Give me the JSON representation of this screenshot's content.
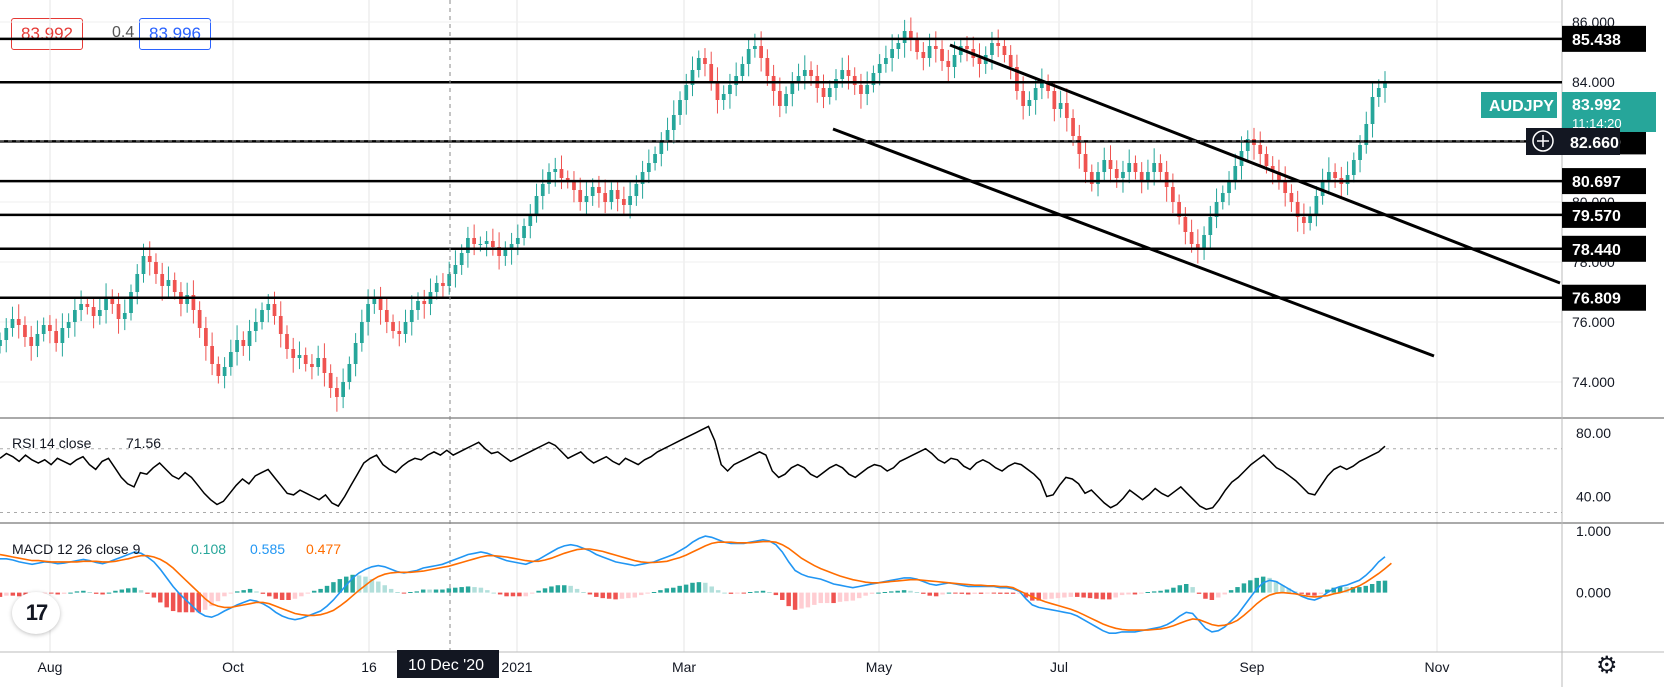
{
  "quote": {
    "bid": "83.992",
    "spread": "0.4",
    "ask": "83.996"
  },
  "symbol": "AUDJPY",
  "last_price": "83.992",
  "countdown": "11:14:20",
  "crosshair_price": "82.660",
  "crosshair_date": "10 Dec '20",
  "rsi_label": "RSI 14 close",
  "rsi_value": "71.56",
  "macd_label": "MACD 12 26 close 9",
  "macd_hist": "0.108",
  "macd_line": "0.585",
  "macd_signal": "0.477",
  "colors": {
    "up": "#26a69a",
    "down": "#ef5350",
    "macd": "#2196f3",
    "signal": "#ff6d00",
    "label_bg": "#000000",
    "symbol_bg": "#26a69a"
  },
  "icons": {
    "logo": "tradingview-logo-icon",
    "settings": "gear-icon",
    "crosshair": "plus-circle-icon"
  },
  "chart_data": {
    "type": "candlestick",
    "instrument": "AUDJPY",
    "x_ticks": [
      "Aug",
      "Oct",
      "16",
      "2021",
      "Mar",
      "May",
      "Jul",
      "Sep",
      "Nov"
    ],
    "price_axis": {
      "ticks": [
        "86.000",
        "84.000",
        "82.000",
        "80.000",
        "78.000",
        "76.000",
        "74.000"
      ],
      "ylim": [
        72.8,
        86.6
      ]
    },
    "horizontal_levels": [
      "85.438",
      "83.992",
      "82.020",
      "80.697",
      "79.570",
      "78.440",
      "76.809"
    ],
    "close_series": [
      75.4,
      75.8,
      76.1,
      75.9,
      75.5,
      75.2,
      75.6,
      75.9,
      75.7,
      75.3,
      75.8,
      76.0,
      76.4,
      76.6,
      76.5,
      76.2,
      76.4,
      76.8,
      76.6,
      76.1,
      76.3,
      77.0,
      77.6,
      78.2,
      78.0,
      77.6,
      77.2,
      77.4,
      77.0,
      76.6,
      76.9,
      76.4,
      75.8,
      75.2,
      74.6,
      74.2,
      74.5,
      75.0,
      75.4,
      75.2,
      75.7,
      76.0,
      76.4,
      76.6,
      76.2,
      75.6,
      75.1,
      74.8,
      74.9,
      74.6,
      74.5,
      74.8,
      74.3,
      73.8,
      73.5,
      74.0,
      74.6,
      75.3,
      76.0,
      76.6,
      76.8,
      76.4,
      76.0,
      75.7,
      75.6,
      76.0,
      76.4,
      76.7,
      76.6,
      77.0,
      77.3,
      77.2,
      77.6,
      77.9,
      78.3,
      78.8,
      78.6,
      78.6,
      78.7,
      78.5,
      78.2,
      78.4,
      78.6,
      78.8,
      79.2,
      79.6,
      80.2,
      80.6,
      81.0,
      81.1,
      80.8,
      80.7,
      80.4,
      80.0,
      80.2,
      80.5,
      80.3,
      80.0,
      80.4,
      80.1,
      79.9,
      80.2,
      80.6,
      81.0,
      81.3,
      81.6,
      82.0,
      82.4,
      82.9,
      83.4,
      83.9,
      84.4,
      84.8,
      84.6,
      84.0,
      83.4,
      83.6,
      83.9,
      84.2,
      84.6,
      85.1,
      85.2,
      84.8,
      84.2,
      83.7,
      83.2,
      83.6,
      84.0,
      84.2,
      84.4,
      84.2,
      83.8,
      83.5,
      83.8,
      84.1,
      84.4,
      84.2,
      83.9,
      83.6,
      83.9,
      84.3,
      84.6,
      84.8,
      85.1,
      85.3,
      85.7,
      85.4,
      85.0,
      84.8,
      85.2,
      85.1,
      84.7,
      84.5,
      84.9,
      85.2,
      85.1,
      84.8,
      84.6,
      84.9,
      85.3,
      85.2,
      84.9,
      84.5,
      83.7,
      83.2,
      83.4,
      83.8,
      84.0,
      83.7,
      83.1,
      83.3,
      82.8,
      82.2,
      81.6,
      81.0,
      80.6,
      81.0,
      81.4,
      81.1,
      80.8,
      81.0,
      81.3,
      81.0,
      80.7,
      81.0,
      81.3,
      81.0,
      80.5,
      80.0,
      79.5,
      79.0,
      78.6,
      78.4,
      78.9,
      79.5,
      80.0,
      80.3,
      80.7,
      81.2,
      81.7,
      82.1,
      81.9,
      81.6,
      81.2,
      81.0,
      80.7,
      80.3,
      80.0,
      79.5,
      79.3,
      79.6,
      80.2,
      80.7,
      81.0,
      80.8,
      80.6,
      80.9,
      81.4,
      81.9,
      82.6,
      83.5,
      83.8,
      83.992
    ],
    "rsi": {
      "ticks": [
        "80.00",
        "40.00"
      ],
      "ylim": [
        24,
        88
      ],
      "bands": [
        70,
        30
      ],
      "values": [
        64,
        67,
        65,
        62,
        66,
        63,
        61,
        63,
        60,
        64,
        62,
        60,
        63,
        65,
        60,
        57,
        62,
        64,
        58,
        52,
        48,
        46,
        55,
        54,
        58,
        61,
        57,
        53,
        51,
        55,
        52,
        47,
        42,
        38,
        35,
        37,
        42,
        47,
        51,
        48,
        53,
        55,
        57,
        52,
        47,
        42,
        41,
        44,
        42,
        40,
        38,
        41,
        36,
        34,
        40,
        47,
        54,
        61,
        64,
        66,
        60,
        57,
        55,
        59,
        62,
        64,
        63,
        66,
        68,
        66,
        69,
        66,
        68,
        70,
        72,
        74,
        70,
        67,
        68,
        65,
        62,
        64,
        66,
        68,
        70,
        72,
        74,
        72,
        68,
        64,
        66,
        68,
        64,
        61,
        63,
        65,
        62,
        60,
        64,
        62,
        60,
        63,
        65,
        68,
        70,
        72,
        74,
        76,
        78,
        80,
        82,
        84,
        75,
        60,
        56,
        60,
        62,
        64,
        66,
        68,
        66,
        56,
        52,
        54,
        58,
        60,
        58,
        54,
        52,
        55,
        58,
        60,
        58,
        54,
        52,
        55,
        58,
        60,
        59,
        56,
        58,
        62,
        64,
        66,
        68,
        70,
        67,
        63,
        61,
        64,
        63,
        59,
        57,
        61,
        63,
        61,
        58,
        56,
        59,
        61,
        60,
        57,
        54,
        50,
        40,
        41,
        47,
        52,
        51,
        48,
        42,
        44,
        40,
        36,
        33,
        35,
        39,
        44,
        41,
        38,
        41,
        45,
        42,
        40,
        43,
        46,
        42,
        38,
        34,
        32,
        33,
        38,
        44,
        49,
        52,
        56,
        60,
        63,
        66,
        62,
        58,
        56,
        53,
        50,
        46,
        42,
        41,
        47,
        53,
        57,
        59,
        57,
        59,
        62,
        64,
        66,
        68,
        71.56
      ]
    },
    "macd": {
      "ticks": [
        "1.000",
        "0.000"
      ],
      "ylim": [
        -0.95,
        1.1
      ],
      "line": [
        0.55,
        0.55,
        0.53,
        0.5,
        0.48,
        0.46,
        0.48,
        0.5,
        0.49,
        0.47,
        0.48,
        0.5,
        0.52,
        0.54,
        0.52,
        0.49,
        0.47,
        0.5,
        0.54,
        0.58,
        0.62,
        0.66,
        0.64,
        0.58,
        0.5,
        0.38,
        0.24,
        0.1,
        -0.02,
        -0.12,
        -0.22,
        -0.32,
        -0.38,
        -0.4,
        -0.36,
        -0.3,
        -0.25,
        -0.2,
        -0.16,
        -0.12,
        -0.14,
        -0.18,
        -0.24,
        -0.32,
        -0.38,
        -0.42,
        -0.44,
        -0.42,
        -0.38,
        -0.34,
        -0.3,
        -0.22,
        -0.12,
        0.0,
        0.12,
        0.24,
        0.32,
        0.38,
        0.42,
        0.44,
        0.42,
        0.38,
        0.34,
        0.32,
        0.34,
        0.36,
        0.4,
        0.42,
        0.44,
        0.46,
        0.5,
        0.54,
        0.58,
        0.62,
        0.64,
        0.66,
        0.64,
        0.6,
        0.56,
        0.52,
        0.5,
        0.48,
        0.46,
        0.5,
        0.54,
        0.6,
        0.66,
        0.72,
        0.76,
        0.78,
        0.76,
        0.72,
        0.68,
        0.62,
        0.58,
        0.54,
        0.5,
        0.48,
        0.46,
        0.44,
        0.46,
        0.48,
        0.5,
        0.54,
        0.58,
        0.62,
        0.68,
        0.74,
        0.82,
        0.88,
        0.92,
        0.9,
        0.86,
        0.82,
        0.8,
        0.8,
        0.8,
        0.82,
        0.84,
        0.86,
        0.84,
        0.78,
        0.66,
        0.5,
        0.36,
        0.3,
        0.26,
        0.24,
        0.22,
        0.18,
        0.14,
        0.12,
        0.1,
        0.08,
        0.1,
        0.12,
        0.14,
        0.16,
        0.18,
        0.2,
        0.22,
        0.24,
        0.24,
        0.22,
        0.18,
        0.14,
        0.12,
        0.14,
        0.16,
        0.14,
        0.12,
        0.1,
        0.1,
        0.1,
        0.1,
        0.1,
        0.08,
        0.08,
        0.06,
        0.02,
        -0.1,
        -0.2,
        -0.24,
        -0.26,
        -0.28,
        -0.3,
        -0.32,
        -0.34,
        -0.38,
        -0.44,
        -0.5,
        -0.56,
        -0.62,
        -0.66,
        -0.66,
        -0.64,
        -0.64,
        -0.64,
        -0.62,
        -0.6,
        -0.58,
        -0.56,
        -0.52,
        -0.46,
        -0.38,
        -0.32,
        -0.34,
        -0.46,
        -0.58,
        -0.64,
        -0.62,
        -0.56,
        -0.46,
        -0.36,
        -0.22,
        -0.08,
        0.06,
        0.16,
        0.2,
        0.18,
        0.12,
        0.06,
        0.0,
        -0.06,
        -0.1,
        -0.12,
        -0.08,
        0.0,
        0.06,
        0.1,
        0.12,
        0.16,
        0.2,
        0.28,
        0.38,
        0.5,
        0.585
      ],
      "signal": [
        0.62,
        0.6,
        0.58,
        0.56,
        0.54,
        0.52,
        0.52,
        0.51,
        0.5,
        0.5,
        0.5,
        0.5,
        0.5,
        0.51,
        0.51,
        0.51,
        0.5,
        0.5,
        0.51,
        0.53,
        0.55,
        0.58,
        0.6,
        0.6,
        0.58,
        0.54,
        0.48,
        0.4,
        0.3,
        0.2,
        0.1,
        0.0,
        -0.1,
        -0.18,
        -0.22,
        -0.24,
        -0.24,
        -0.22,
        -0.2,
        -0.18,
        -0.16,
        -0.16,
        -0.18,
        -0.22,
        -0.26,
        -0.3,
        -0.34,
        -0.36,
        -0.37,
        -0.37,
        -0.36,
        -0.33,
        -0.29,
        -0.22,
        -0.14,
        -0.05,
        0.04,
        0.12,
        0.2,
        0.26,
        0.3,
        0.32,
        0.33,
        0.33,
        0.33,
        0.34,
        0.35,
        0.37,
        0.39,
        0.41,
        0.43,
        0.46,
        0.49,
        0.52,
        0.55,
        0.58,
        0.6,
        0.6,
        0.59,
        0.58,
        0.56,
        0.54,
        0.52,
        0.51,
        0.51,
        0.53,
        0.56,
        0.6,
        0.64,
        0.67,
        0.7,
        0.71,
        0.71,
        0.69,
        0.67,
        0.64,
        0.61,
        0.58,
        0.55,
        0.52,
        0.5,
        0.49,
        0.49,
        0.5,
        0.51,
        0.54,
        0.57,
        0.61,
        0.66,
        0.71,
        0.76,
        0.8,
        0.82,
        0.82,
        0.82,
        0.81,
        0.81,
        0.81,
        0.82,
        0.83,
        0.83,
        0.82,
        0.78,
        0.72,
        0.64,
        0.56,
        0.5,
        0.44,
        0.39,
        0.35,
        0.31,
        0.27,
        0.24,
        0.21,
        0.19,
        0.17,
        0.16,
        0.16,
        0.17,
        0.18,
        0.19,
        0.2,
        0.21,
        0.21,
        0.2,
        0.19,
        0.18,
        0.17,
        0.16,
        0.15,
        0.14,
        0.13,
        0.12,
        0.12,
        0.11,
        0.11,
        0.1,
        0.1,
        0.08,
        0.03,
        -0.02,
        -0.07,
        -0.11,
        -0.15,
        -0.18,
        -0.21,
        -0.24,
        -0.27,
        -0.31,
        -0.36,
        -0.41,
        -0.46,
        -0.51,
        -0.55,
        -0.58,
        -0.6,
        -0.61,
        -0.61,
        -0.61,
        -0.61,
        -0.6,
        -0.59,
        -0.57,
        -0.54,
        -0.5,
        -0.46,
        -0.43,
        -0.44,
        -0.48,
        -0.52,
        -0.54,
        -0.53,
        -0.5,
        -0.45,
        -0.37,
        -0.28,
        -0.18,
        -0.1,
        -0.04,
        -0.01,
        0.0,
        -0.01,
        -0.02,
        -0.04,
        -0.06,
        -0.07,
        -0.06,
        -0.05,
        -0.02,
        0.0,
        0.03,
        0.07,
        0.11,
        0.17,
        0.24,
        0.31,
        0.39,
        0.477
      ]
    }
  }
}
